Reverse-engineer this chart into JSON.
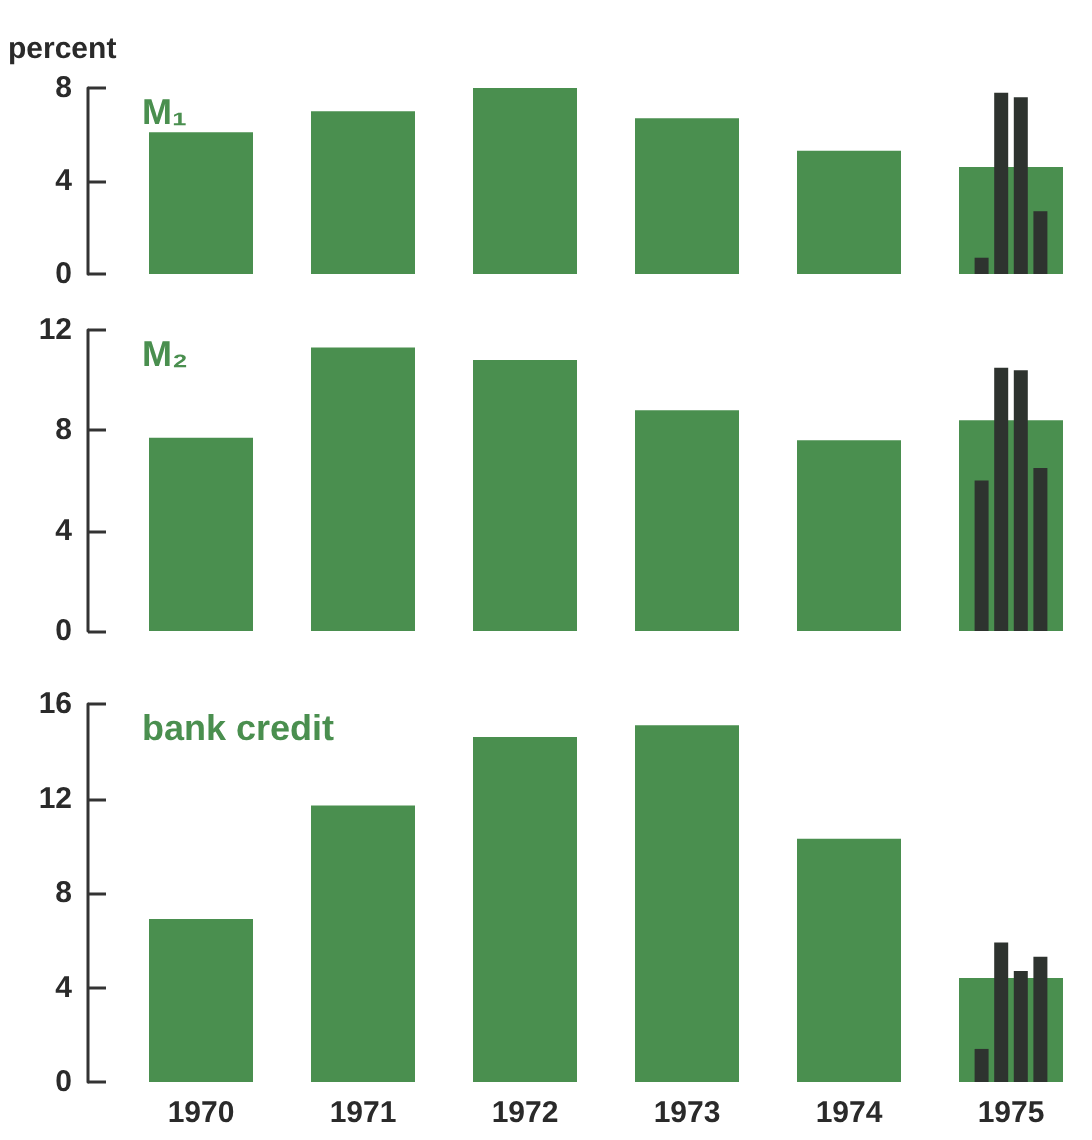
{
  "chart_data": [
    {
      "type": "bar",
      "title": "M₁",
      "ylabel": "percent",
      "categories": [
        "1970",
        "1971",
        "1972",
        "1973",
        "1974",
        "1975"
      ],
      "ylim": [
        0,
        8
      ],
      "yticks": [
        0,
        4,
        8
      ],
      "grid": false,
      "tick_labels": "y",
      "series": [
        {
          "color": "#4a8f4f",
          "values": [
            6.1,
            7.0,
            8.0,
            6.7,
            5.3,
            4.6
          ]
        },
        {
          "color": "#2e332f",
          "values": [
            null,
            null,
            null,
            null,
            null,
            0.7
          ]
        },
        {
          "color": "#2e332f",
          "values": [
            null,
            null,
            null,
            null,
            null,
            7.8
          ]
        },
        {
          "color": "#2e332f",
          "values": [
            null,
            null,
            null,
            null,
            null,
            7.6
          ]
        },
        {
          "color": "#2e332f",
          "values": [
            null,
            null,
            null,
            null,
            null,
            2.7
          ]
        }
      ]
    },
    {
      "type": "bar",
      "title": "M₂",
      "categories": [
        "1970",
        "1971",
        "1972",
        "1973",
        "1974",
        "1975"
      ],
      "ylim": [
        0,
        12
      ],
      "yticks": [
        0,
        4,
        8,
        12
      ],
      "grid": false,
      "tick_labels": "y",
      "series": [
        {
          "color": "#4a8f4f",
          "values": [
            7.7,
            11.3,
            10.8,
            8.8,
            7.6,
            8.4
          ]
        },
        {
          "color": "#2e332f",
          "values": [
            null,
            null,
            null,
            null,
            null,
            6.0
          ]
        },
        {
          "color": "#2e332f",
          "values": [
            null,
            null,
            null,
            null,
            null,
            10.5
          ]
        },
        {
          "color": "#2e332f",
          "values": [
            null,
            null,
            null,
            null,
            null,
            10.4
          ]
        },
        {
          "color": "#2e332f",
          "values": [
            null,
            null,
            null,
            null,
            null,
            6.5
          ]
        }
      ]
    },
    {
      "type": "bar",
      "title": "bank credit",
      "categories": [
        "1970",
        "1971",
        "1972",
        "1973",
        "1974",
        "1975"
      ],
      "ylim": [
        0,
        16
      ],
      "yticks": [
        0,
        4,
        8,
        12,
        16
      ],
      "grid": false,
      "series": [
        {
          "color": "#4a8f4f",
          "values": [
            6.9,
            11.7,
            14.6,
            15.1,
            10.3,
            4.4
          ]
        },
        {
          "color": "#2e332f",
          "values": [
            null,
            null,
            null,
            null,
            null,
            1.4
          ]
        },
        {
          "color": "#2e332f",
          "values": [
            null,
            null,
            null,
            null,
            null,
            5.9
          ]
        },
        {
          "color": "#2e332f",
          "values": [
            null,
            null,
            null,
            null,
            null,
            4.7
          ]
        },
        {
          "color": "#2e332f",
          "values": [
            null,
            null,
            null,
            null,
            null,
            5.3
          ]
        }
      ]
    }
  ]
}
